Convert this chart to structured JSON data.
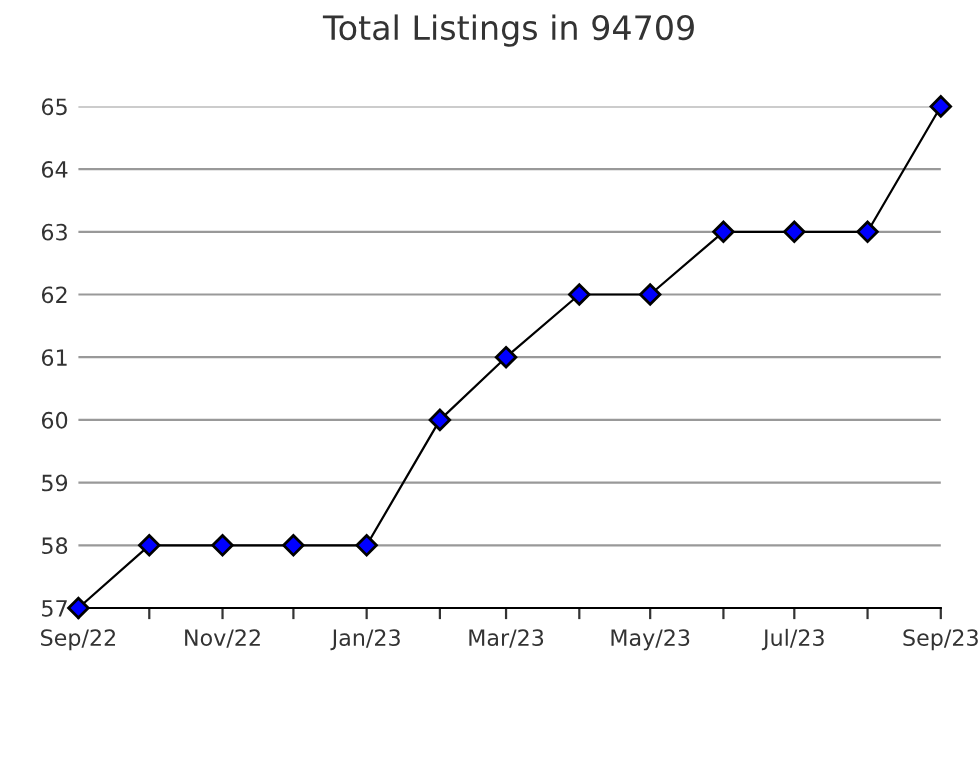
{
  "chart_data": {
    "type": "line",
    "title": "Total Listings in 94709",
    "x": [
      "2022-09",
      "2022-10",
      "2022-11",
      "2022-12",
      "2023-01",
      "2023-02",
      "2023-03",
      "2023-04",
      "2023-05",
      "2023-06",
      "2023-07",
      "2023-08",
      "2023-09"
    ],
    "series": [
      {
        "color": "#000000",
        "values": [
          57,
          58,
          58,
          58,
          58,
          60,
          61,
          62,
          62,
          63,
          63,
          63,
          65
        ]
      }
    ],
    "marker": "diamond",
    "line_style": "solid",
    "grid": "y",
    "xlim": [
      "2022-09",
      "2023-09"
    ],
    "xticks": [
      {
        "value": "2022-09",
        "label": "Sep/22"
      },
      {
        "value": "2022-10",
        "label": null
      },
      {
        "value": "2022-11",
        "label": "Nov/22"
      },
      {
        "value": "2022-12",
        "label": null
      },
      {
        "value": "2023-01",
        "label": "Jan/23"
      },
      {
        "value": "2023-02",
        "label": null
      },
      {
        "value": "2023-03",
        "label": "Mar/23"
      },
      {
        "value": "2023-04",
        "label": null
      },
      {
        "value": "2023-05",
        "label": "May/23"
      },
      {
        "value": "2023-06",
        "label": null
      },
      {
        "value": "2023-07",
        "label": "Jul/23"
      },
      {
        "value": "2023-08",
        "label": null
      },
      {
        "value": "2023-09",
        "label": "Sep/23"
      }
    ],
    "ylim": [
      57,
      65
    ],
    "yticks": [
      57,
      58,
      59,
      60,
      61,
      62,
      63,
      64,
      65
    ]
  }
}
